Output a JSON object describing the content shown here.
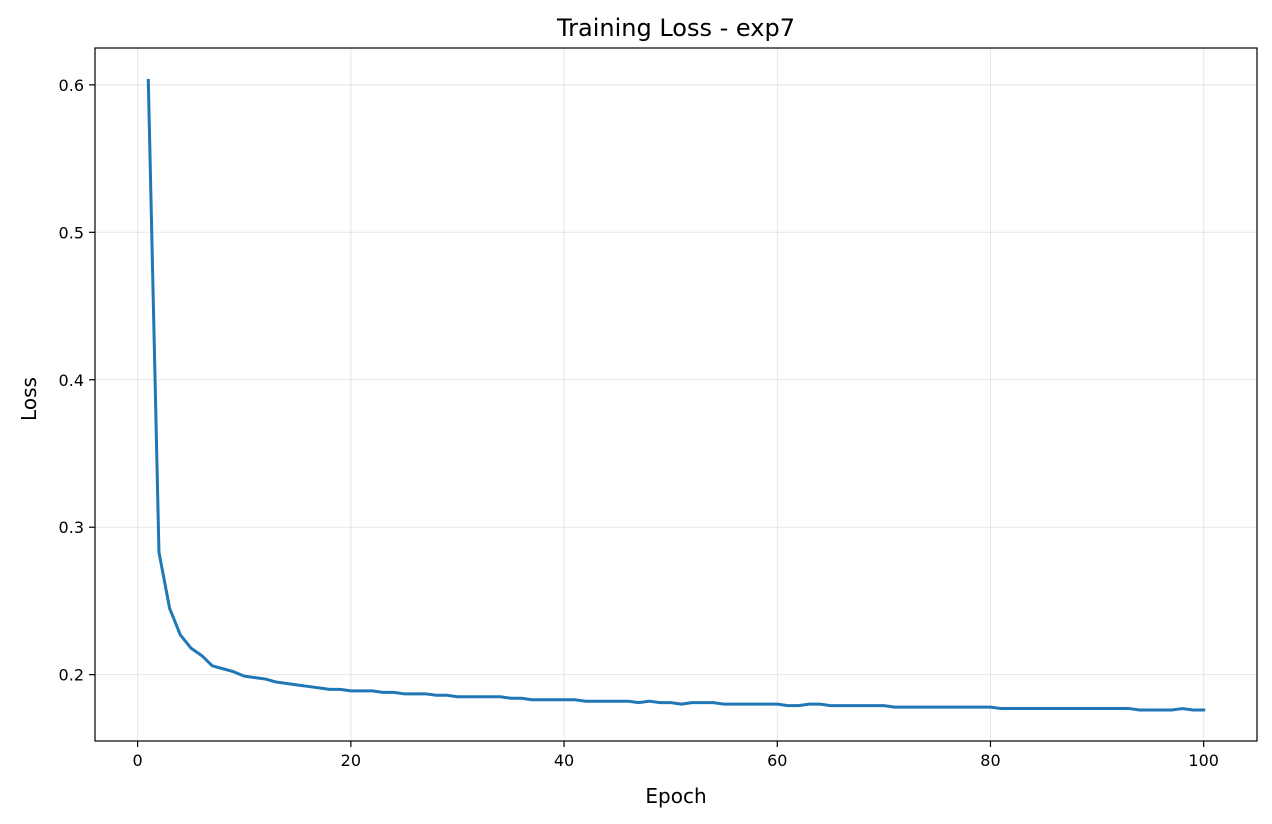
{
  "chart_data": {
    "type": "line",
    "title": "Training Loss - exp7",
    "xlabel": "Epoch",
    "ylabel": "Loss",
    "xlim": [
      -4,
      105
    ],
    "ylim": [
      0.155,
      0.625
    ],
    "xticks": [
      0,
      20,
      40,
      60,
      80,
      100
    ],
    "xtick_labels": [
      "0",
      "20",
      "40",
      "60",
      "80",
      "100"
    ],
    "yticks": [
      0.2,
      0.3,
      0.4,
      0.5,
      0.6
    ],
    "ytick_labels": [
      "0.2",
      "0.3",
      "0.4",
      "0.5",
      "0.6"
    ],
    "grid": true,
    "line_color": "#1f77b4",
    "series": [
      {
        "x": [
          1,
          2,
          3,
          4,
          5,
          6,
          7,
          8,
          9,
          10,
          11,
          12,
          13,
          14,
          15,
          16,
          17,
          18,
          19,
          20,
          21,
          22,
          23,
          24,
          25,
          26,
          27,
          28,
          29,
          30,
          31,
          32,
          33,
          34,
          35,
          36,
          37,
          38,
          39,
          40,
          41,
          42,
          43,
          44,
          45,
          46,
          47,
          48,
          49,
          50,
          51,
          52,
          53,
          54,
          55,
          56,
          57,
          58,
          59,
          60,
          61,
          62,
          63,
          64,
          65,
          66,
          67,
          68,
          69,
          70,
          71,
          72,
          73,
          74,
          75,
          76,
          77,
          78,
          79,
          80,
          81,
          82,
          83,
          84,
          85,
          86,
          87,
          88,
          89,
          90,
          91,
          92,
          93,
          94,
          95,
          96,
          97,
          98,
          99,
          100
        ],
        "values": [
          0.603,
          0.283,
          0.245,
          0.227,
          0.218,
          0.213,
          0.206,
          0.204,
          0.202,
          0.199,
          0.198,
          0.197,
          0.195,
          0.194,
          0.193,
          0.192,
          0.191,
          0.19,
          0.19,
          0.189,
          0.189,
          0.189,
          0.188,
          0.188,
          0.187,
          0.187,
          0.187,
          0.186,
          0.186,
          0.185,
          0.185,
          0.185,
          0.185,
          0.185,
          0.184,
          0.184,
          0.183,
          0.183,
          0.183,
          0.183,
          0.183,
          0.182,
          0.182,
          0.182,
          0.182,
          0.182,
          0.181,
          0.182,
          0.181,
          0.181,
          0.18,
          0.181,
          0.181,
          0.181,
          0.18,
          0.18,
          0.18,
          0.18,
          0.18,
          0.18,
          0.179,
          0.179,
          0.18,
          0.18,
          0.179,
          0.179,
          0.179,
          0.179,
          0.179,
          0.179,
          0.178,
          0.178,
          0.178,
          0.178,
          0.178,
          0.178,
          0.178,
          0.178,
          0.178,
          0.178,
          0.177,
          0.177,
          0.177,
          0.177,
          0.177,
          0.177,
          0.177,
          0.177,
          0.177,
          0.177,
          0.177,
          0.177,
          0.177,
          0.176,
          0.176,
          0.176,
          0.176,
          0.177,
          0.176,
          0.176
        ]
      }
    ]
  }
}
